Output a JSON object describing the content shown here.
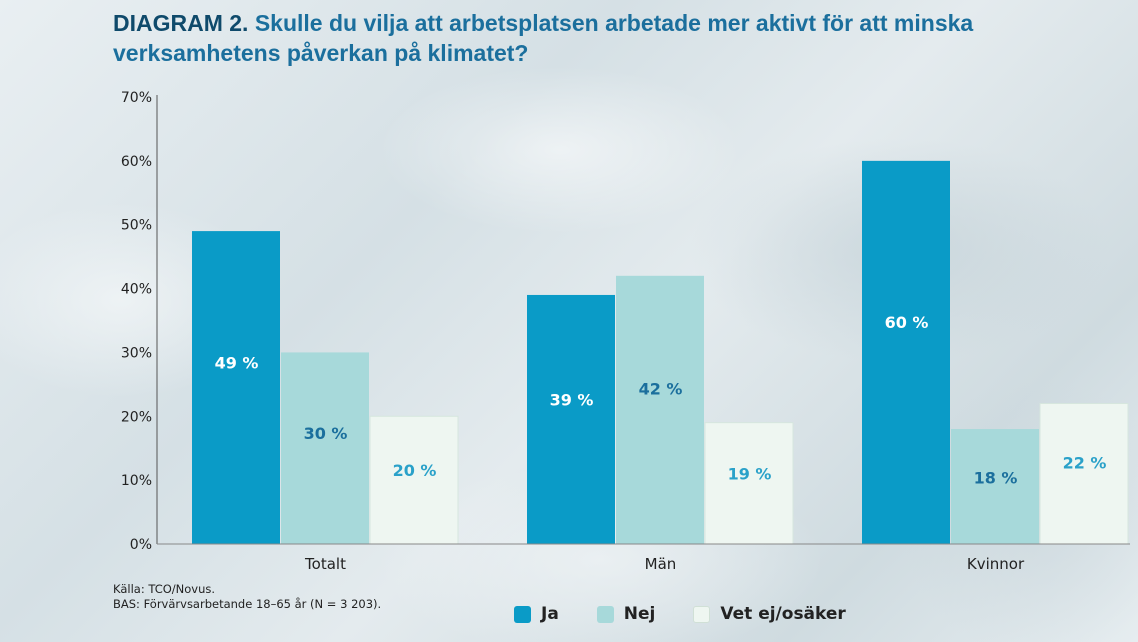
{
  "header": {
    "prefix": "DIAGRAM 2.",
    "title": "Skulle du vilja att arbetsplatsen arbetade mer aktivt för att minska verksamhetens påverkan på klimatet?"
  },
  "footer": {
    "source": "Källa: TCO/Novus.",
    "base": "BAS: Förvärvsarbetande 18–65 år (N = 3 203)."
  },
  "colors": {
    "ja": "#0a9bc7",
    "nej": "#a7d9da",
    "vet": "#eef6f1",
    "label_on_dark": "#ffffff",
    "label_on_light": "#1b6f9d",
    "label_on_pale": "#2aa1c9"
  },
  "chart_data": {
    "type": "bar",
    "categories": [
      "Totalt",
      "Män",
      "Kvinnor"
    ],
    "series": [
      {
        "name": "Ja",
        "values": [
          49,
          39,
          60
        ],
        "labels": [
          "49 %",
          "39 %",
          "60 %"
        ]
      },
      {
        "name": "Nej",
        "values": [
          30,
          42,
          18
        ],
        "labels": [
          "30 %",
          "42 %",
          "18 %"
        ]
      },
      {
        "name": "Vet ej/osäker",
        "values": [
          20,
          19,
          22
        ],
        "labels": [
          "20 %",
          "19 %",
          "22 %"
        ]
      }
    ],
    "ylim": [
      0,
      70
    ],
    "yticks": [
      "0%",
      "10%",
      "20%",
      "30%",
      "40%",
      "50%",
      "60%",
      "70%"
    ],
    "grid": false,
    "legend_position": "bottom"
  }
}
